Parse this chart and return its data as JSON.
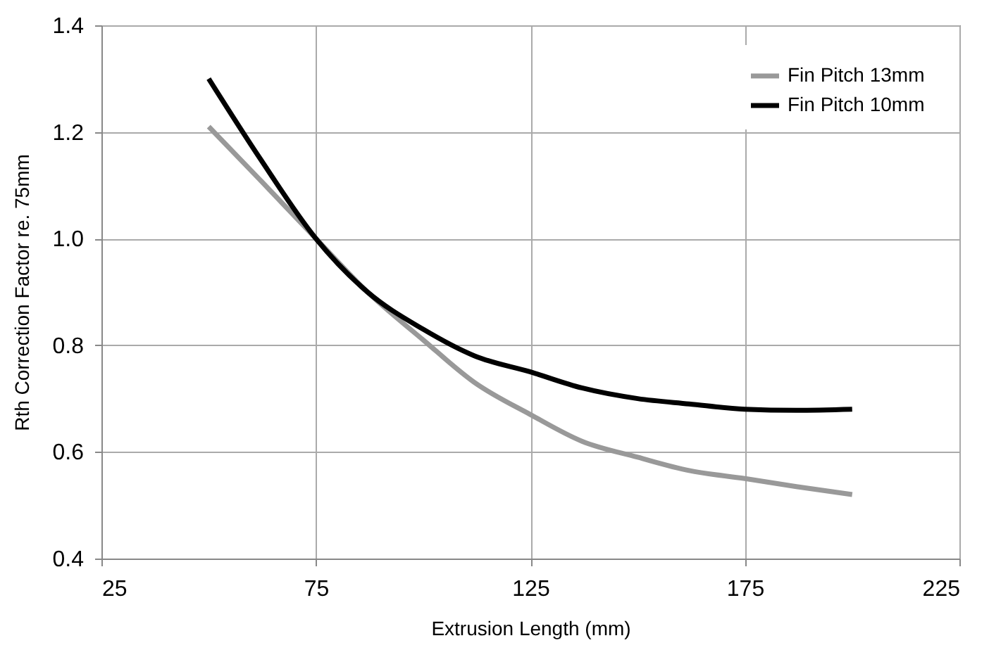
{
  "chart_data": {
    "type": "line",
    "xlabel": "Extrusion Length    (mm)",
    "ylabel": "Rth Correction Factor    re.  75mm",
    "series": [
      {
        "name": "Fin Pitch 13mm",
        "color": "#999999",
        "x": [
          50,
          62,
          75,
          87,
          100,
          112,
          125,
          137,
          150,
          162,
          175,
          187,
          200
        ],
        "values": [
          1.21,
          1.11,
          1.0,
          0.9,
          0.81,
          0.73,
          0.67,
          0.62,
          0.59,
          0.565,
          0.55,
          0.535,
          0.52
        ]
      },
      {
        "name": "Fin Pitch 10mm",
        "color": "#000000",
        "x": [
          50,
          62,
          75,
          87,
          100,
          112,
          125,
          137,
          150,
          162,
          175,
          187,
          200
        ],
        "values": [
          1.3,
          1.15,
          1.0,
          0.9,
          0.83,
          0.78,
          0.75,
          0.72,
          0.7,
          0.69,
          0.68,
          0.678,
          0.68
        ]
      }
    ],
    "xlim": [
      25,
      225
    ],
    "xticks": [
      25,
      75,
      125,
      175,
      225
    ],
    "ylim": [
      0.4,
      1.4
    ],
    "yticks": [
      0.4,
      0.6,
      0.8,
      {
        "value": 1,
        "label": "1.0"
      },
      1.2,
      1.4
    ],
    "grid": true,
    "legend": "top right",
    "line_style": "solid",
    "marker": "none"
  }
}
